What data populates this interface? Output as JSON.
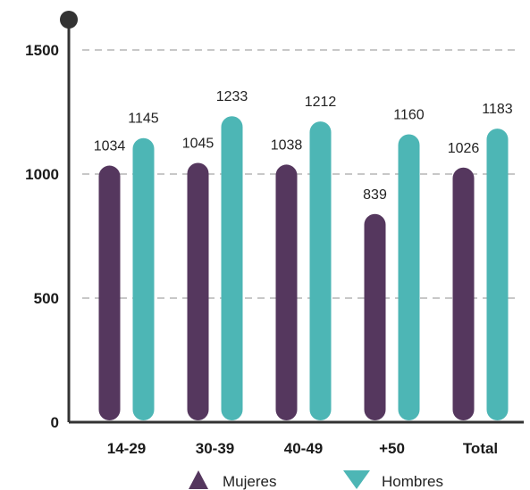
{
  "chart_data": {
    "type": "bar",
    "title": "",
    "xlabel": "",
    "ylabel": "",
    "categories": [
      "14-29",
      "30-39",
      "40-49",
      "+50",
      "Total"
    ],
    "series": [
      {
        "name": "Mujeres",
        "values": [
          1034,
          1045,
          1038,
          839,
          1026
        ],
        "color": "#55375e",
        "legend_icon": "triangle-up-icon"
      },
      {
        "name": "Hombres",
        "values": [
          1145,
          1233,
          1212,
          1160,
          1183
        ],
        "color": "#4db6b5",
        "legend_icon": "triangle-down-icon"
      }
    ],
    "ylim": [
      0,
      1500
    ],
    "yticks": [
      0,
      500,
      1000,
      1500
    ],
    "grid": true,
    "legend_position": "bottom-center",
    "colors": {
      "axis": "#333333",
      "grid": "#c8c8c8"
    }
  }
}
